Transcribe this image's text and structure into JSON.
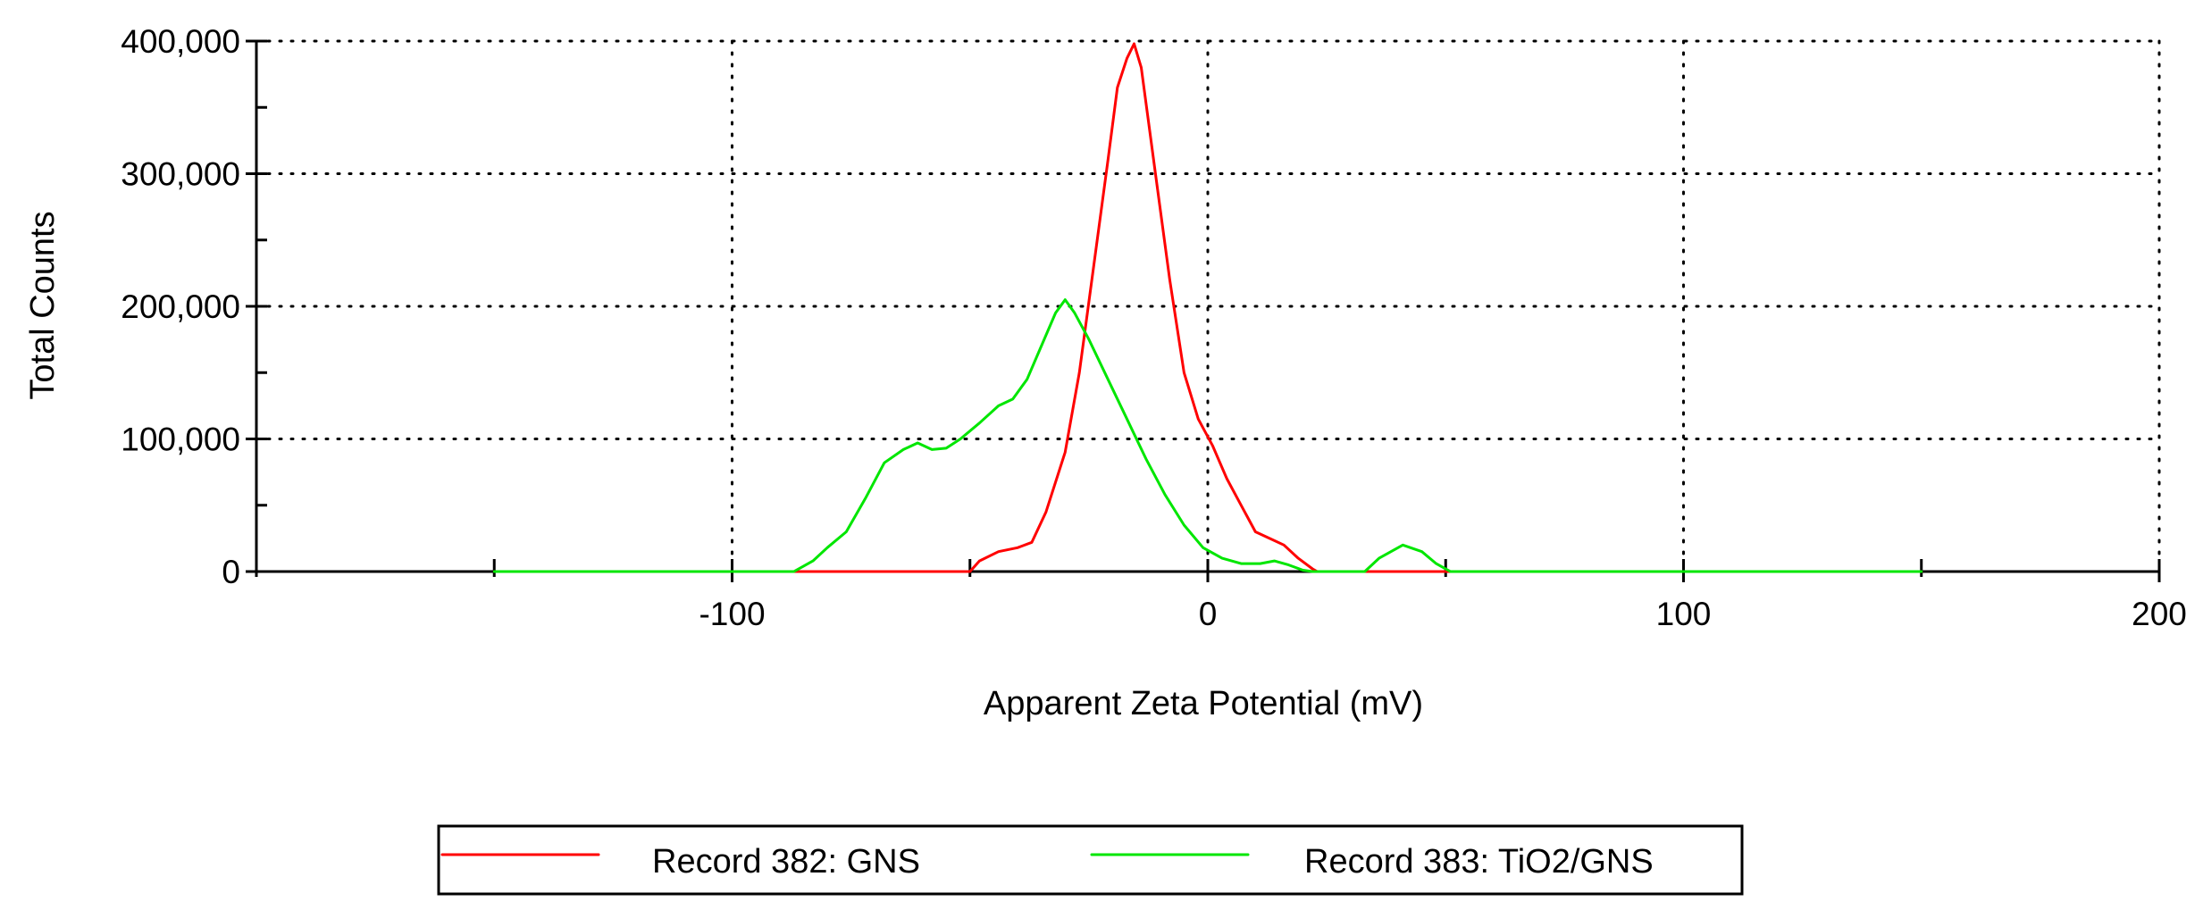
{
  "chart_data": {
    "type": "line",
    "title": "",
    "xlabel": "Apparent Zeta Potential (mV)",
    "ylabel": "Total Counts",
    "xlim": [
      -200,
      200
    ],
    "ylim": [
      0,
      400000
    ],
    "x_ticks": [
      -100,
      0,
      100,
      200
    ],
    "x_tick_labels": [
      "-100",
      "0",
      "100",
      "200"
    ],
    "y_ticks": [
      0,
      100000,
      200000,
      300000,
      400000
    ],
    "y_tick_labels": [
      "0",
      "100,000",
      "200,000",
      "300,000",
      "400,000"
    ],
    "grid": true,
    "legend_position": "bottom",
    "series": [
      {
        "name": "Record 382: GNS",
        "color": "#ff0000",
        "points": [
          [
            -150,
            0
          ],
          [
            -50,
            0
          ],
          [
            -48,
            8000
          ],
          [
            -44,
            15000
          ],
          [
            -40,
            18000
          ],
          [
            -37,
            22000
          ],
          [
            -34,
            45000
          ],
          [
            -30,
            90000
          ],
          [
            -27,
            150000
          ],
          [
            -24,
            230000
          ],
          [
            -21,
            310000
          ],
          [
            -19,
            365000
          ],
          [
            -17,
            387000
          ],
          [
            -15.5,
            398000
          ],
          [
            -14,
            380000
          ],
          [
            -11,
            300000
          ],
          [
            -8,
            220000
          ],
          [
            -5,
            150000
          ],
          [
            -2,
            115000
          ],
          [
            1,
            95000
          ],
          [
            4,
            70000
          ],
          [
            7,
            50000
          ],
          [
            10,
            30000
          ],
          [
            13,
            25000
          ],
          [
            16,
            20000
          ],
          [
            19,
            10000
          ],
          [
            22,
            2000
          ],
          [
            23,
            0
          ],
          [
            150,
            0
          ]
        ]
      },
      {
        "name": "Record 383: TiO2/GNS",
        "color": "#00e600",
        "points": [
          [
            -150,
            0
          ],
          [
            -87,
            0
          ],
          [
            -83,
            8000
          ],
          [
            -80,
            18000
          ],
          [
            -76,
            30000
          ],
          [
            -72,
            55000
          ],
          [
            -68,
            82000
          ],
          [
            -64,
            92000
          ],
          [
            -61,
            97000
          ],
          [
            -58,
            92000
          ],
          [
            -55,
            93000
          ],
          [
            -52,
            100000
          ],
          [
            -48,
            112000
          ],
          [
            -44,
            125000
          ],
          [
            -41,
            130000
          ],
          [
            -38,
            145000
          ],
          [
            -35,
            170000
          ],
          [
            -32,
            195000
          ],
          [
            -30,
            205000
          ],
          [
            -28,
            195000
          ],
          [
            -25,
            175000
          ],
          [
            -21,
            145000
          ],
          [
            -17,
            115000
          ],
          [
            -13,
            85000
          ],
          [
            -9,
            58000
          ],
          [
            -5,
            35000
          ],
          [
            -1,
            18000
          ],
          [
            3,
            10000
          ],
          [
            7,
            6000
          ],
          [
            11,
            6000
          ],
          [
            14,
            8000
          ],
          [
            17,
            5000
          ],
          [
            20,
            1000
          ],
          [
            22,
            0
          ],
          [
            33,
            0
          ],
          [
            36,
            10000
          ],
          [
            41,
            20000
          ],
          [
            45,
            15000
          ],
          [
            48,
            6000
          ],
          [
            51,
            0
          ],
          [
            150,
            0
          ]
        ]
      }
    ]
  }
}
